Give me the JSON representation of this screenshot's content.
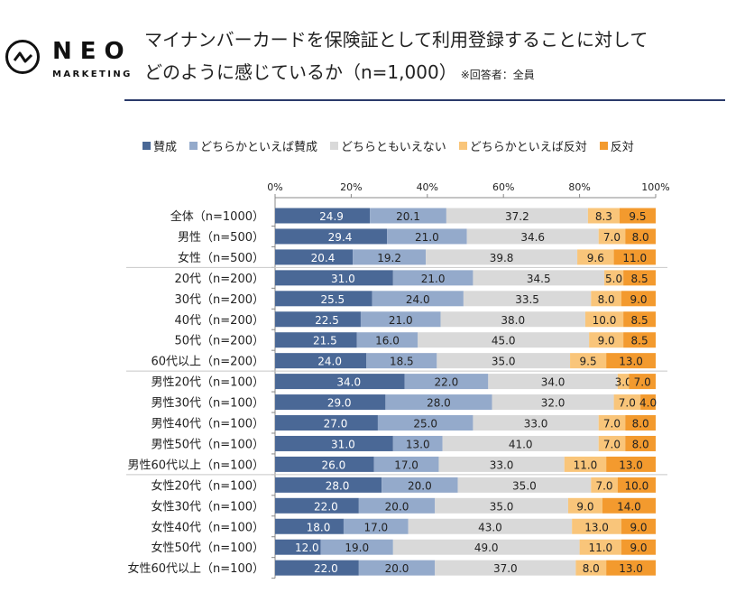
{
  "brand": {
    "name": "NEO",
    "subname": "MARKETING"
  },
  "header": {
    "title_line1": "マイナンバーカードを保険証として利用登録することに対して",
    "title_line2": "どのように感じているか（n=1,000）",
    "note": "※回答者：全員"
  },
  "chart_data": {
    "type": "bar",
    "orientation": "horizontal",
    "stacked": "percent",
    "title": "マイナンバーカードを保険証として利用登録することに対してどのように感じているか（n=1,000）",
    "xlabel": "",
    "ylabel": "",
    "xlim": [
      0,
      100
    ],
    "x_ticks": [
      "0%",
      "20%",
      "40%",
      "60%",
      "80%",
      "100%"
    ],
    "legend_position": "top",
    "grid": false,
    "categories": [
      "全体（n=1000）",
      "男性（n=500）",
      "女性（n=500）",
      "20代（n=200）",
      "30代（n=200）",
      "40代（n=200）",
      "50代（n=200）",
      "60代以上（n=200）",
      "男性20代（n=100）",
      "男性30代（n=100）",
      "男性40代（n=100）",
      "男性50代（n=100）",
      "男性60代以上（n=100）",
      "女性20代（n=100）",
      "女性30代（n=100）",
      "女性40代（n=100）",
      "女性50代（n=100）",
      "女性60代以上（n=100）"
    ],
    "group_separators_after": [
      2,
      7,
      12
    ],
    "series": [
      {
        "name": "賛成",
        "color": "#4a6896",
        "label_color": "#ffffff",
        "values": [
          24.9,
          29.4,
          20.4,
          31.0,
          25.5,
          22.5,
          21.5,
          24.0,
          34.0,
          29.0,
          27.0,
          31.0,
          26.0,
          28.0,
          22.0,
          18.0,
          12.0,
          22.0
        ]
      },
      {
        "name": "どちらかといえば賛成",
        "color": "#94aacb",
        "label_color": "#222222",
        "values": [
          20.1,
          21.0,
          19.2,
          21.0,
          24.0,
          21.0,
          16.0,
          18.5,
          22.0,
          28.0,
          25.0,
          13.0,
          17.0,
          20.0,
          20.0,
          17.0,
          19.0,
          20.0
        ]
      },
      {
        "name": "どちらともいえない",
        "color": "#d9d9d9",
        "label_color": "#222222",
        "values": [
          37.2,
          34.6,
          39.8,
          34.5,
          33.5,
          38.0,
          45.0,
          35.0,
          34.0,
          32.0,
          33.0,
          41.0,
          33.0,
          35.0,
          35.0,
          43.0,
          49.0,
          37.0
        ]
      },
      {
        "name": "どちらかといえば反対",
        "color": "#f9c57a",
        "label_color": "#222222",
        "values": [
          8.3,
          7.0,
          9.6,
          5.0,
          8.0,
          10.0,
          9.0,
          9.5,
          3.0,
          7.0,
          7.0,
          7.0,
          11.0,
          7.0,
          9.0,
          13.0,
          11.0,
          8.0
        ]
      },
      {
        "name": "反対",
        "color": "#f39a2e",
        "label_color": "#222222",
        "values": [
          9.5,
          8.0,
          11.0,
          8.5,
          9.0,
          8.5,
          8.5,
          13.0,
          7.0,
          4.0,
          8.0,
          8.0,
          13.0,
          10.0,
          14.0,
          9.0,
          9.0,
          13.0
        ]
      }
    ]
  }
}
